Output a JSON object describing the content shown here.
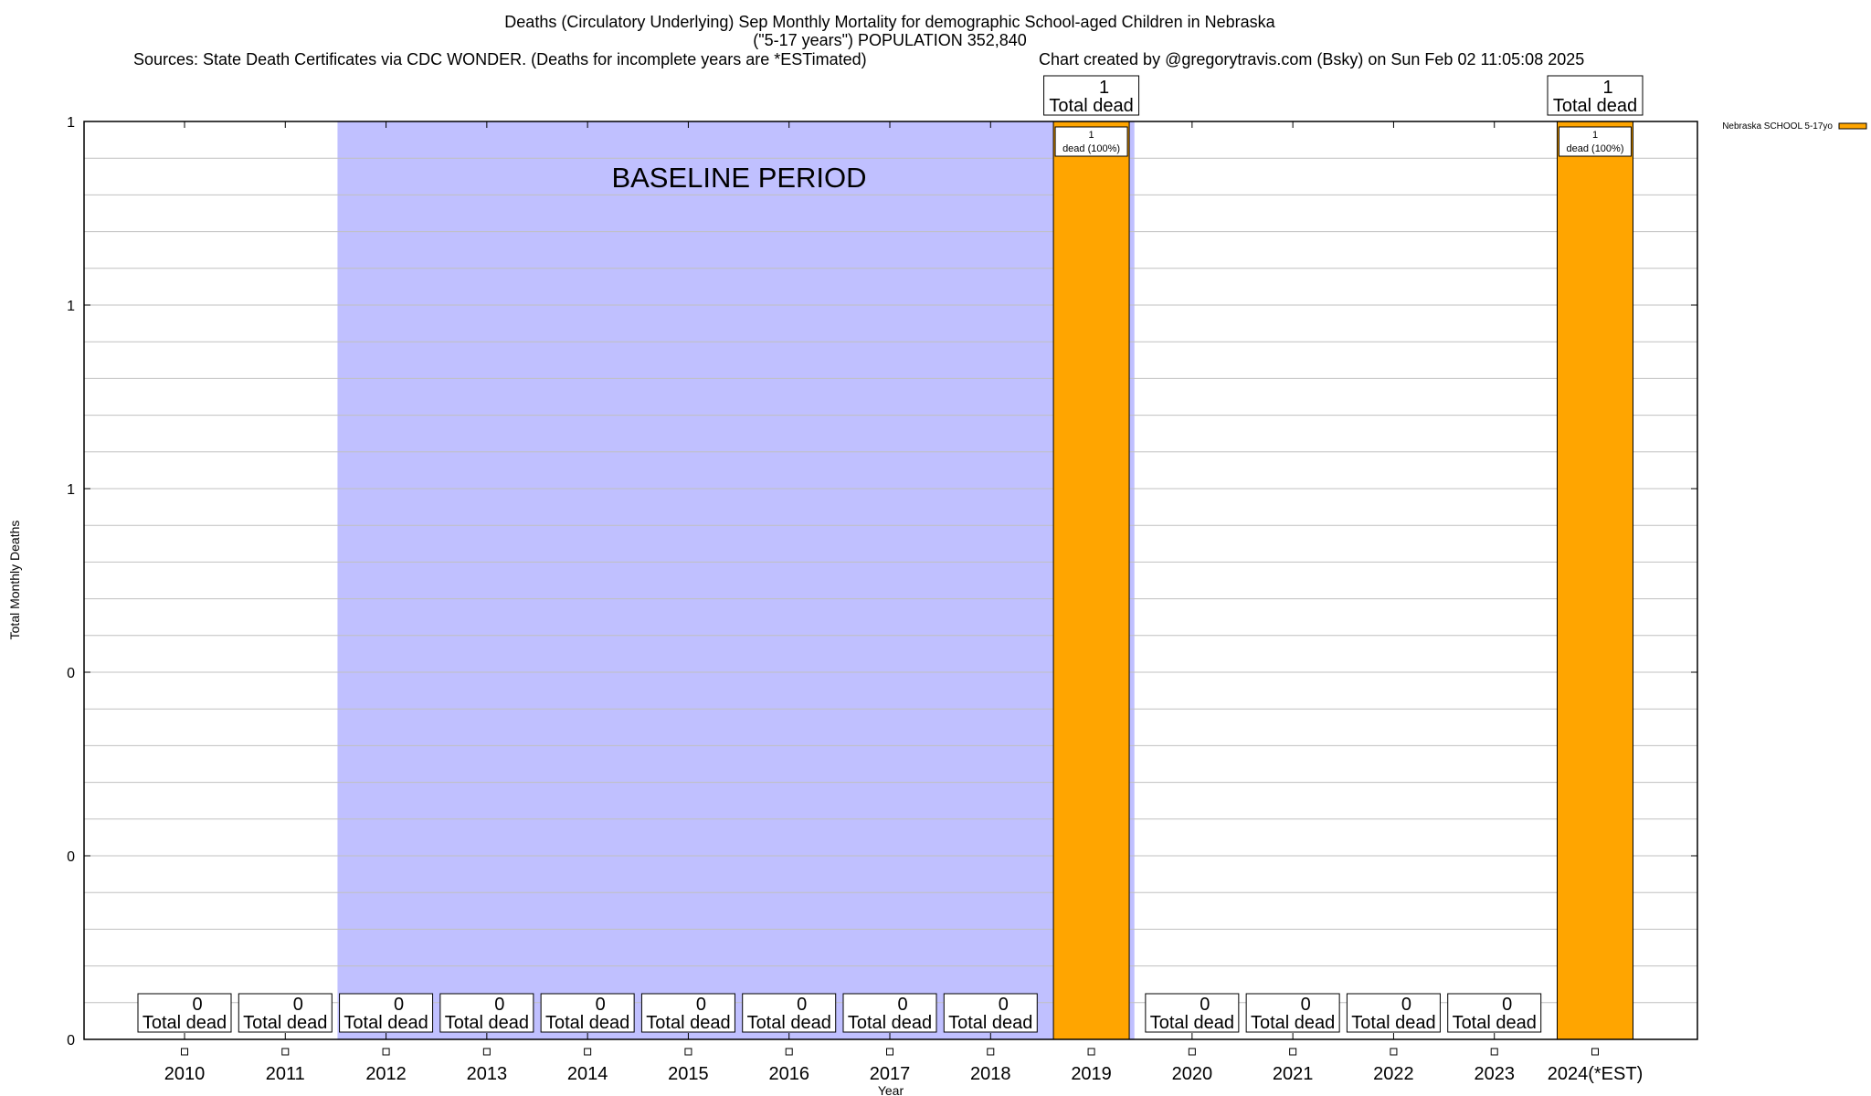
{
  "header": {
    "title_line1": "Deaths (Circulatory Underlying) Sep Monthly Mortality for demographic School-aged Children in Nebraska",
    "title_line2": "(\"5-17 years\") POPULATION 352,840",
    "sources": "Sources: State Death Certificates via CDC WONDER. (Deaths for incomplete years are *ESTimated)",
    "credit": "Chart created by @gregorytravis.com (Bsky) on Sun Feb 02 11:05:08 2025"
  },
  "chart_data": {
    "type": "bar",
    "xlabel": "Year",
    "ylabel": "Total Monthly Deaths",
    "ylim": [
      0,
      1
    ],
    "y_tick_labels": [
      "0",
      "0",
      "0",
      "1",
      "1",
      "1"
    ],
    "grid": true,
    "legend_position": "right",
    "categories": [
      "2010",
      "2011",
      "2012",
      "2013",
      "2014",
      "2015",
      "2016",
      "2017",
      "2018",
      "2019",
      "2020",
      "2021",
      "2022",
      "2023",
      "2024(*EST)"
    ],
    "series": [
      {
        "name": "Nebraska SCHOOL 5-17yo",
        "color": "#ffa500",
        "values": [
          0,
          0,
          0,
          0,
          0,
          0,
          0,
          0,
          0,
          1,
          0,
          0,
          0,
          0,
          1
        ]
      }
    ],
    "total_label_suffix": "Total dead",
    "inner_label_suffix": "dead (100%)",
    "annotation": {
      "text": "BASELINE PERIOD",
      "color": "#c0c0ff",
      "from_category": "2012",
      "to_category": "2019"
    }
  }
}
